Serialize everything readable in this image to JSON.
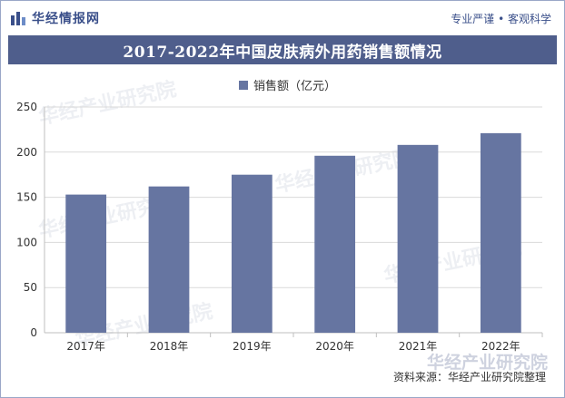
{
  "header": {
    "brand": "华经情报网",
    "tagline": "专业严谨 • 客观科学",
    "title": "2017-2022年中国皮肤病外用药销售额情况",
    "logo_icon": "bars-logo-icon",
    "watermark_text": "华经产业研究院",
    "source": "资料来源：华经产业研究院整理"
  },
  "colors": {
    "bar": "#6675a1",
    "title_bg": "#4f5e8c",
    "brand": "#3a4f8a"
  },
  "chart_data": {
    "type": "bar",
    "title": "2017-2022年中国皮肤病外用药销售额情况",
    "categories": [
      "2017年",
      "2018年",
      "2019年",
      "2020年",
      "2021年",
      "2022年"
    ],
    "series": [
      {
        "name": "销售额（亿元）",
        "values": [
          153,
          162,
          175,
          196,
          208,
          221
        ]
      }
    ],
    "ylim": [
      0,
      250
    ],
    "yticks": [
      "0",
      "50",
      "100",
      "150",
      "200",
      "250"
    ],
    "legend_position": "top-center",
    "grid": true
  }
}
